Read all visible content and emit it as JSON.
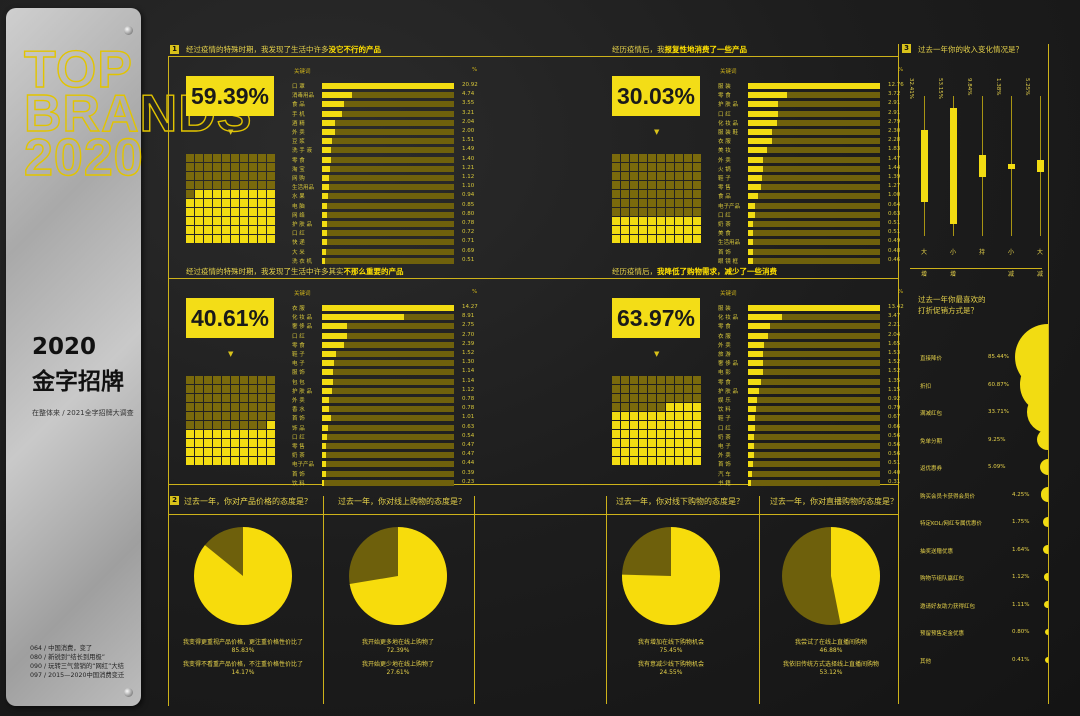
{
  "sidebar": {
    "top_brands": "TOP BRANDS 2020",
    "title_line1": "2020",
    "title_line2": "金字招牌",
    "subtitle": "在整体来 / 2021全字招牌大调查",
    "toc": [
      "064 / 中国消费，变了",
      "080 / 新锐到“结长到用极”",
      "090 / 玩转三气营销的“网红”大结",
      "097 / 2015—2020中国消费变迁"
    ]
  },
  "section1": {
    "num": "1",
    "panels": [
      {
        "question_pre": "经过疫情的特殊时期，我发现了生活中许多",
        "question_hl": "没它不行的产品",
        "percent": "59.39%",
        "percent_value": 59.39,
        "col_keyword": "关键词",
        "col_pct": "%",
        "items": [
          {
            "label": "口 罩",
            "value": 20.92
          },
          {
            "label": "消毒用品",
            "value": 4.74
          },
          {
            "label": "食 品",
            "value": 3.55
          },
          {
            "label": "手 机",
            "value": 3.21
          },
          {
            "label": "酒 精",
            "value": 2.04
          },
          {
            "label": "外 卖",
            "value": 2.0
          },
          {
            "label": "豆 浆",
            "value": 1.51
          },
          {
            "label": "洗 手 液",
            "value": 1.49
          },
          {
            "label": "零 食",
            "value": 1.4
          },
          {
            "label": "淘 宝",
            "value": 1.21
          },
          {
            "label": "网 购",
            "value": 1.12
          },
          {
            "label": "生活用品",
            "value": 1.1
          },
          {
            "label": "水 果",
            "value": 0.94
          },
          {
            "label": "电 脑",
            "value": 0.85
          },
          {
            "label": "网 络",
            "value": 0.8
          },
          {
            "label": "护 肤 品",
            "value": 0.78
          },
          {
            "label": "口 红",
            "value": 0.72
          },
          {
            "label": "快 递",
            "value": 0.71
          },
          {
            "label": "大 米",
            "value": 0.69
          },
          {
            "label": "洗 衣 机",
            "value": 0.51
          }
        ]
      },
      {
        "question_pre": "经历疫情后，我",
        "question_hl": "报复性地消费了一些产品",
        "percent": "30.03%",
        "percent_value": 30.03,
        "col_keyword": "关键词",
        "col_pct": "%",
        "items": [
          {
            "label": "服 装",
            "value": 12.76
          },
          {
            "label": "零 食",
            "value": 3.72
          },
          {
            "label": "护 肤 品",
            "value": 2.91
          },
          {
            "label": "口 红",
            "value": 2.91
          },
          {
            "label": "化 妆 品",
            "value": 2.79
          },
          {
            "label": "服 装 鞋",
            "value": 2.3
          },
          {
            "label": "衣 服",
            "value": 2.28
          },
          {
            "label": "美 妆",
            "value": 1.83
          },
          {
            "label": "外 卖",
            "value": 1.47
          },
          {
            "label": "火 锅",
            "value": 1.44
          },
          {
            "label": "鞋 子",
            "value": 1.39
          },
          {
            "label": "零 售",
            "value": 1.27
          },
          {
            "label": "食 品",
            "value": 1.0
          },
          {
            "label": "电子产品",
            "value": 0.64
          },
          {
            "label": "口 红",
            "value": 0.63
          },
          {
            "label": "奶 茶",
            "value": 0.51
          },
          {
            "label": "美 食",
            "value": 0.51
          },
          {
            "label": "生活用品",
            "value": 0.49
          },
          {
            "label": "首 饰",
            "value": 0.48
          },
          {
            "label": "眼 镜 框",
            "value": 0.46
          }
        ]
      },
      {
        "question_pre": "经过疫情的特殊时期，我发现了生活中许多其实",
        "question_hl": "不那么重要的产品",
        "percent": "40.61%",
        "percent_value": 40.61,
        "col_keyword": "关键词",
        "col_pct": "%",
        "items": [
          {
            "label": "衣 服",
            "value": 14.27
          },
          {
            "label": "化 妆 品",
            "value": 8.91
          },
          {
            "label": "奢 侈 品",
            "value": 2.75
          },
          {
            "label": "口 红",
            "value": 2.7
          },
          {
            "label": "零 食",
            "value": 2.39
          },
          {
            "label": "鞋 子",
            "value": 1.52
          },
          {
            "label": "电 子",
            "value": 1.3
          },
          {
            "label": "服 饰",
            "value": 1.14
          },
          {
            "label": "包 包",
            "value": 1.14
          },
          {
            "label": "护 肤 品",
            "value": 1.12
          },
          {
            "label": "外 卖",
            "value": 0.78
          },
          {
            "label": "香 水",
            "value": 0.78
          },
          {
            "label": "首 饰",
            "value": 1.01
          },
          {
            "label": "饰 品",
            "value": 0.63
          },
          {
            "label": "口 红",
            "value": 0.54
          },
          {
            "label": "零 售",
            "value": 0.47
          },
          {
            "label": "奶 茶",
            "value": 0.47
          },
          {
            "label": "电子产品",
            "value": 0.44
          },
          {
            "label": "首 饰",
            "value": 0.39
          },
          {
            "label": "饮 料",
            "value": 0.23
          }
        ]
      },
      {
        "question_pre": "经历疫情后，",
        "question_hl": "我降低了购物需求，减少了一些消费",
        "percent": "63.97%",
        "percent_value": 63.97,
        "col_keyword": "关键词",
        "col_pct": "%",
        "items": [
          {
            "label": "服 装",
            "value": 13.42
          },
          {
            "label": "化 妆 品",
            "value": 3.47
          },
          {
            "label": "零 食",
            "value": 2.21
          },
          {
            "label": "衣 服",
            "value": 2.04
          },
          {
            "label": "外 卖",
            "value": 1.65
          },
          {
            "label": "旅 游",
            "value": 1.53
          },
          {
            "label": "奢 侈 品",
            "value": 1.52
          },
          {
            "label": "电 影",
            "value": 1.52
          },
          {
            "label": "零 食",
            "value": 1.35
          },
          {
            "label": "护 肤 品",
            "value": 1.15
          },
          {
            "label": "娱 乐",
            "value": 0.92
          },
          {
            "label": "饮 料",
            "value": 0.79
          },
          {
            "label": "鞋 子",
            "value": 0.67
          },
          {
            "label": "口 红",
            "value": 0.66
          },
          {
            "label": "奶 茶",
            "value": 0.56
          },
          {
            "label": "电 子",
            "value": 0.56
          },
          {
            "label": "外 卖",
            "value": 0.56
          },
          {
            "label": "首 饰",
            "value": 0.51
          },
          {
            "label": "汽 车",
            "value": 0.4
          },
          {
            "label": "书 籍",
            "value": 0.31
          }
        ]
      }
    ]
  },
  "section2": {
    "num": "2",
    "pies": [
      {
        "title": "过去一年，你对产品价格的态度是？",
        "note1": "我变得更重视产品价格，更注重价格性价比了",
        "val1": "85.83%",
        "v1": 85.83,
        "note2": "我变得不看重产品价格，不注重价格性价比了",
        "val2": "14.17%"
      },
      {
        "title": "过去一年，你对线上购物的态度是？",
        "note1": "我开始更多地在线上购物了",
        "val1": "72.39%",
        "v1": 72.39,
        "note2": "我开始更少地在线上购物了",
        "val2": "27.61%"
      },
      {
        "title": "过去一年，你对线下购物的态度是？",
        "note1": "我有增加在线下购物机会",
        "val1": "75.45%",
        "v1": 75.45,
        "note2": "我有意减少线下购物机会",
        "val2": "24.55%"
      },
      {
        "title": "过去一年，你对直播购物的态度是？",
        "note1": "我尝试了在线上直播间购物",
        "val1": "46.88%",
        "v1": 46.88,
        "note2": "我依旧传统方式选择线上直播间购物",
        "val2": "53.12%"
      }
    ]
  },
  "section3": {
    "num": "3",
    "question": "过去一年你的收入变化情况是？",
    "candles": [
      {
        "pct": "32.41%",
        "value": 32.41,
        "lines": [
          "大",
          "幅",
          "增",
          "长"
        ]
      },
      {
        "pct": "53.15%",
        "value": 53.15,
        "lines": [
          "小",
          "幅",
          "增",
          "长"
        ]
      },
      {
        "pct": "9.84%",
        "value": 9.84,
        "lines": [
          "持",
          "平"
        ]
      },
      {
        "pct": "1.38%",
        "value": 1.38,
        "lines": [
          "小",
          "幅",
          "减",
          "少"
        ]
      },
      {
        "pct": "5.25%",
        "value": 5.25,
        "lines": [
          "大",
          "幅",
          "减",
          "少"
        ]
      }
    ]
  },
  "section4": {
    "question_l1": "过去一年你最喜欢的",
    "question_l2": "打折促销方式是？",
    "items": [
      {
        "label": "直接降价",
        "pct": "85.44%",
        "value": 85.44
      },
      {
        "label": "折扣",
        "pct": "60.87%",
        "value": 60.87
      },
      {
        "label": "满减红包",
        "pct": "33.71%",
        "value": 33.71
      },
      {
        "label": "免单分期",
        "pct": "9.25%",
        "value": 9.25
      },
      {
        "label": "返优惠券",
        "pct": "5.09%",
        "value": 5.09
      },
      {
        "label": "购买会员卡获得会员价",
        "pct": "4.25%",
        "value": 4.25
      },
      {
        "label": "特定KOL/网红专属优惠价",
        "pct": "1.75%",
        "value": 1.75
      },
      {
        "label": "抽奖送赠优惠",
        "pct": "1.64%",
        "value": 1.64
      },
      {
        "label": "购物节组队赢红包",
        "pct": "1.12%",
        "value": 1.12
      },
      {
        "label": "邀请好友助力获得红包",
        "pct": "1.11%",
        "value": 1.11
      },
      {
        "label": "预留预售定金优惠",
        "pct": "0.80%",
        "value": 0.8
      },
      {
        "label": "其他",
        "pct": "0.41%",
        "value": 0.41
      }
    ]
  },
  "chart_data": [
    {
      "type": "bar",
      "title": "经过疫情的特殊时期，我发现了生活中许多没它不行的产品",
      "xlabel": "关键词",
      "ylabel": "%"
    },
    {
      "type": "bar",
      "title": "经历疫情后，我报复性地消费了一些产品",
      "xlabel": "关键词",
      "ylabel": "%"
    },
    {
      "type": "bar",
      "title": "经过疫情的特殊时期，我发现了生活中许多其实不那么重要的产品",
      "xlabel": "关键词",
      "ylabel": "%"
    },
    {
      "type": "bar",
      "title": "经历疫情后，我降低了购物需求，减少了一些消费",
      "xlabel": "关键词",
      "ylabel": "%"
    },
    {
      "type": "pie",
      "title": "过去一年，你对产品价格的态度是？",
      "values": [
        85.83,
        14.17
      ]
    },
    {
      "type": "pie",
      "title": "过去一年，你对线上购物的态度是？",
      "values": [
        72.39,
        27.61
      ]
    },
    {
      "type": "pie",
      "title": "过去一年，你对线下购物的态度是？",
      "values": [
        75.45,
        24.55
      ]
    },
    {
      "type": "pie",
      "title": "过去一年，你对直播购物的态度是？",
      "values": [
        46.88,
        53.12
      ]
    },
    {
      "type": "bar",
      "title": "过去一年你的收入变化情况是？",
      "values": [
        32.41,
        53.15,
        9.84,
        1.38,
        5.25
      ]
    },
    {
      "type": "bar",
      "title": "过去一年你最喜欢的打折促销方式是？",
      "values": [
        85.44,
        60.87,
        33.71,
        9.25,
        5.09,
        4.25,
        1.75,
        1.64,
        1.12,
        1.11,
        0.8,
        0.41
      ]
    }
  ]
}
